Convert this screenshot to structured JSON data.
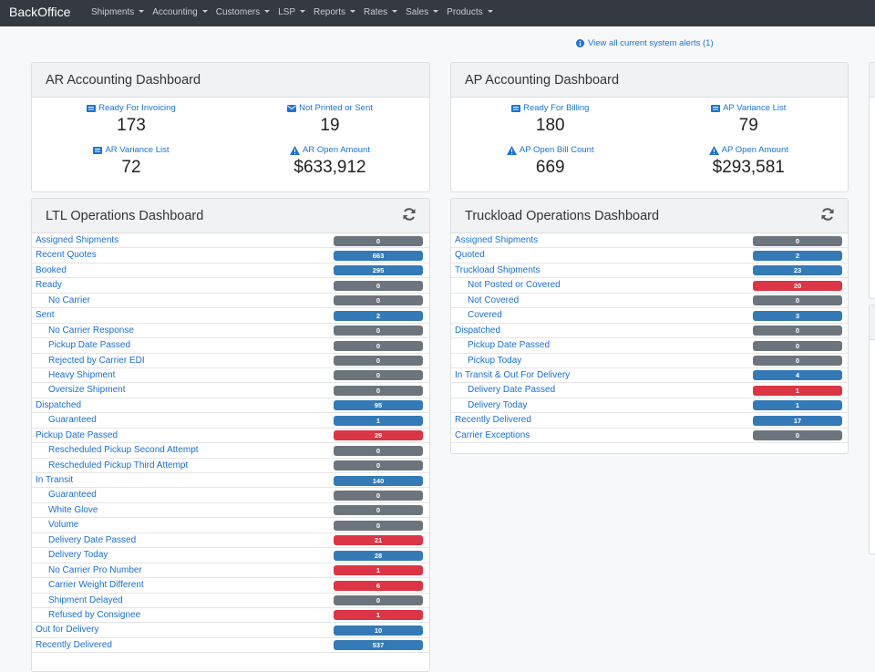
{
  "navbar": {
    "brand": "BackOffice",
    "menu": [
      "Shipments",
      "Accounting",
      "Customers",
      "LSP",
      "Reports",
      "Rates",
      "Sales",
      "Products"
    ]
  },
  "alert_link": "View all current system alerts (1)",
  "ar_dashboard": {
    "title": "AR Accounting Dashboard",
    "items": [
      {
        "label": "Ready For Invoicing",
        "value": "173"
      },
      {
        "label": "Not Printed or Sent",
        "value": "19"
      },
      {
        "label": "AR Variance List",
        "value": "72"
      },
      {
        "label": "AR Open Amount",
        "value": "$633,912"
      }
    ]
  },
  "ap_dashboard": {
    "title": "AP Accounting Dashboard",
    "items": [
      {
        "label": "Ready For Billing",
        "value": "180"
      },
      {
        "label": "AP Variance List",
        "value": "79"
      },
      {
        "label": "AP Open Bill Count",
        "value": "669"
      },
      {
        "label": "AP Open Amount",
        "value": "$293,581"
      }
    ]
  },
  "ltl_dashboard": {
    "title": "LTL Operations Dashboard",
    "rows": [
      {
        "label": "Assigned Shipments",
        "count": 0,
        "level": 0,
        "color": "#6c757d"
      },
      {
        "label": "Recent Quotes",
        "count": 663,
        "level": 0,
        "color": "#337ab7"
      },
      {
        "label": "Booked",
        "count": 295,
        "level": 0,
        "color": "#337ab7"
      },
      {
        "label": "Ready",
        "count": 0,
        "level": 0,
        "color": "#6c757d"
      },
      {
        "label": "No Carrier",
        "count": 0,
        "level": 1,
        "color": "#6c757d"
      },
      {
        "label": "Sent",
        "count": 2,
        "level": 0,
        "color": "#337ab7"
      },
      {
        "label": "No Carrier Response",
        "count": 0,
        "level": 1,
        "color": "#6c757d"
      },
      {
        "label": "Pickup Date Passed",
        "count": 0,
        "level": 1,
        "color": "#6c757d"
      },
      {
        "label": "Rejected by Carrier EDI",
        "count": 0,
        "level": 1,
        "color": "#6c757d"
      },
      {
        "label": "Heavy Shipment",
        "count": 0,
        "level": 1,
        "color": "#6c757d"
      },
      {
        "label": "Oversize Shipment",
        "count": 0,
        "level": 1,
        "color": "#6c757d"
      },
      {
        "label": "Dispatched",
        "count": 95,
        "level": 0,
        "color": "#337ab7"
      },
      {
        "label": "Guaranteed",
        "count": 1,
        "level": 1,
        "color": "#337ab7"
      },
      {
        "label": "Pickup Date Passed",
        "count": 29,
        "level": 0,
        "color": "#dc3545"
      },
      {
        "label": "Rescheduled Pickup Second Attempt",
        "count": 0,
        "level": 1,
        "color": "#6c757d"
      },
      {
        "label": "Rescheduled Pickup Third Attempt",
        "count": 0,
        "level": 1,
        "color": "#6c757d"
      },
      {
        "label": "In Transit",
        "count": 140,
        "level": 0,
        "color": "#337ab7"
      },
      {
        "label": "Guaranteed",
        "count": 0,
        "level": 1,
        "color": "#6c757d"
      },
      {
        "label": "White Glove",
        "count": 0,
        "level": 1,
        "color": "#6c757d"
      },
      {
        "label": "Volume",
        "count": 0,
        "level": 1,
        "color": "#6c757d"
      },
      {
        "label": "Delivery Date Passed",
        "count": 21,
        "level": 1,
        "color": "#dc3545"
      },
      {
        "label": "Delivery Today",
        "count": 28,
        "level": 1,
        "color": "#337ab7"
      },
      {
        "label": "No Carrier Pro Number",
        "count": 1,
        "level": 1,
        "color": "#dc3545"
      },
      {
        "label": "Carrier Weight Different",
        "count": 6,
        "level": 1,
        "color": "#dc3545"
      },
      {
        "label": "Shipment Delayed",
        "count": 0,
        "level": 1,
        "color": "#6c757d"
      },
      {
        "label": "Refused by Consignee",
        "count": 1,
        "level": 1,
        "color": "#dc3545"
      },
      {
        "label": "Out for Delivery",
        "count": 10,
        "level": 0,
        "color": "#337ab7"
      },
      {
        "label": "Recently Delivered",
        "count": 537,
        "level": 0,
        "color": "#337ab7"
      }
    ]
  },
  "truckload_dashboard": {
    "title": "Truckload Operations Dashboard",
    "rows": [
      {
        "label": "Assigned Shipments",
        "count": 0,
        "level": 0,
        "color": "#6c757d"
      },
      {
        "label": "Quoted",
        "count": 2,
        "level": 0,
        "color": "#337ab7"
      },
      {
        "label": "Truckload Shipments",
        "count": 23,
        "level": 0,
        "color": "#337ab7"
      },
      {
        "label": "Not Posted or Covered",
        "count": 20,
        "level": 1,
        "color": "#dc3545"
      },
      {
        "label": "Not Covered",
        "count": 0,
        "level": 1,
        "color": "#6c757d"
      },
      {
        "label": "Covered",
        "count": 3,
        "level": 1,
        "color": "#337ab7"
      },
      {
        "label": "Dispatched",
        "count": 0,
        "level": 0,
        "color": "#6c757d"
      },
      {
        "label": "Pickup Date Passed",
        "count": 0,
        "level": 1,
        "color": "#6c757d"
      },
      {
        "label": "Pickup Today",
        "count": 0,
        "level": 1,
        "color": "#6c757d"
      },
      {
        "label": "In Transit & Out For Delivery",
        "count": 4,
        "level": 0,
        "color": "#337ab7"
      },
      {
        "label": "Delivery Date Passed",
        "count": 1,
        "level": 1,
        "color": "#dc3545"
      },
      {
        "label": "Delivery Today",
        "count": 1,
        "level": 1,
        "color": "#337ab7"
      },
      {
        "label": "Recently Delivered",
        "count": 17,
        "level": 0,
        "color": "#337ab7"
      },
      {
        "label": "Carrier Exceptions",
        "count": 0,
        "level": 0,
        "color": "#6c757d"
      }
    ]
  }
}
